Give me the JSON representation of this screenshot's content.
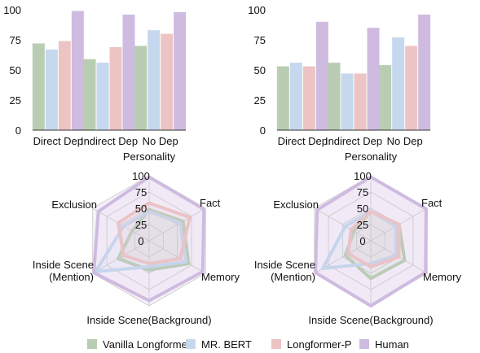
{
  "colors": {
    "Vanilla Longformer": "#b9cdb2",
    "MR. BERT": "#c6d8ee",
    "Longformer-P": "#edc4c4",
    "Human": "#cfbbe0"
  },
  "legend": [
    "Vanilla Longformer",
    "MR. BERT",
    "Longformer-P",
    "Human"
  ],
  "chart_data": [
    {
      "type": "bar",
      "categories": [
        "Direct Dep",
        "Indirect Dep",
        "No Dep"
      ],
      "series": [
        {
          "name": "Vanilla Longformer",
          "values": [
            72,
            59,
            70
          ]
        },
        {
          "name": "MR. BERT",
          "values": [
            67,
            56,
            83
          ]
        },
        {
          "name": "Longformer-P",
          "values": [
            74,
            69,
            80
          ]
        },
        {
          "name": "Human",
          "values": [
            99,
            96,
            98
          ]
        }
      ],
      "ylim": [
        0,
        100
      ],
      "yticks": [
        0,
        25,
        50,
        75,
        100
      ]
    },
    {
      "type": "bar",
      "categories": [
        "Direct Dep",
        "Indirect Dep",
        "No Dep"
      ],
      "series": [
        {
          "name": "Vanilla Longformer",
          "values": [
            53,
            56,
            54
          ]
        },
        {
          "name": "MR. BERT",
          "values": [
            56,
            47,
            77
          ]
        },
        {
          "name": "Longformer-P",
          "values": [
            53,
            47,
            70
          ]
        },
        {
          "name": "Human",
          "values": [
            90,
            85,
            96
          ]
        }
      ],
      "ylim": [
        0,
        100
      ],
      "yticks": [
        0,
        25,
        50,
        75,
        100
      ]
    },
    {
      "type": "radar",
      "axes": [
        "Personality",
        "Fact",
        "Memory",
        "Inside Scene(Background)",
        "Inside Scene\n(Mention)",
        "Exclusion"
      ],
      "series": [
        {
          "name": "Vanilla Longformer",
          "values": [
            48,
            60,
            70,
            45,
            55,
            30
          ]
        },
        {
          "name": "MR. BERT",
          "values": [
            45,
            55,
            65,
            40,
            95,
            45
          ]
        },
        {
          "name": "Longformer-P",
          "values": [
            58,
            72,
            55,
            35,
            45,
            55
          ]
        },
        {
          "name": "Human",
          "values": [
            98,
            97,
            95,
            92,
            98,
            90
          ]
        }
      ],
      "rlim": [
        0,
        100
      ],
      "rticks": [
        0,
        25,
        50,
        75,
        100
      ]
    },
    {
      "type": "radar",
      "axes": [
        "Personality",
        "Fact",
        "Memory",
        "Inside Scene(Background)",
        "Inside Scene\n(Mention)",
        "Exclusion"
      ],
      "series": [
        {
          "name": "Vanilla Longformer",
          "values": [
            45,
            50,
            60,
            58,
            45,
            30
          ]
        },
        {
          "name": "MR. BERT",
          "values": [
            45,
            45,
            45,
            35,
            85,
            45
          ]
        },
        {
          "name": "Longformer-P",
          "values": [
            45,
            50,
            50,
            40,
            40,
            35
          ]
        },
        {
          "name": "Human",
          "values": [
            98,
            98,
            97,
            100,
            98,
            95
          ]
        }
      ],
      "rlim": [
        0,
        100
      ],
      "rticks": [
        0,
        25,
        50,
        75,
        100
      ]
    }
  ]
}
